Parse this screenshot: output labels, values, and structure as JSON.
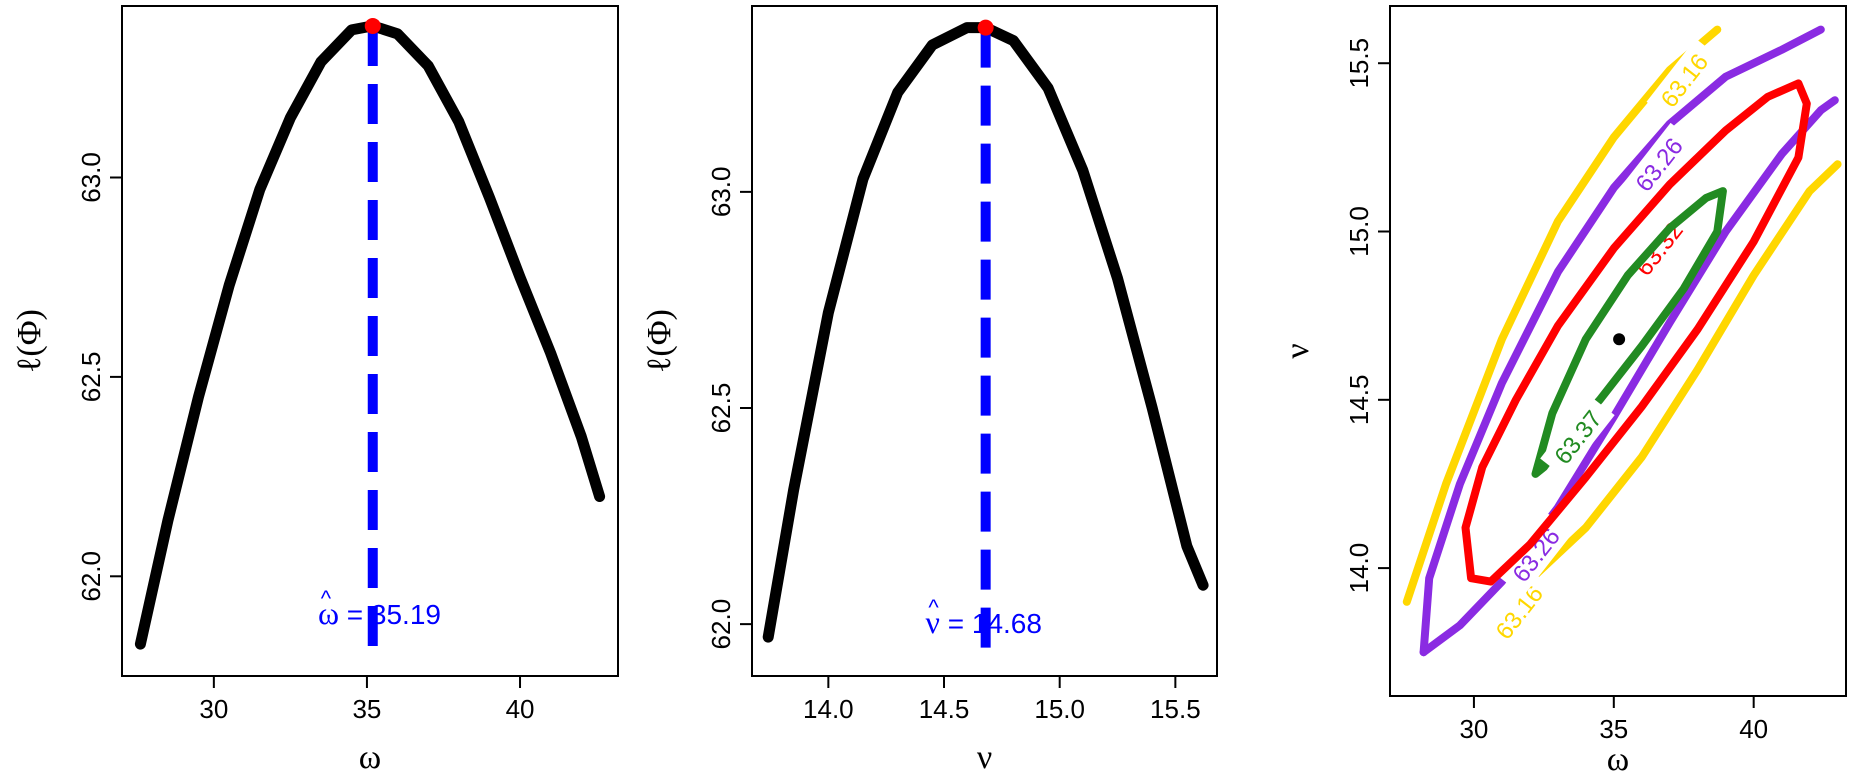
{
  "colors": {
    "curve": "#000000",
    "mle_point": "#ff0000",
    "mle_line": "#0000ff",
    "contour_63_16": "#ffd700",
    "contour_63_26": "#8a2be2",
    "contour_63_32": "#ff0000",
    "contour_63_37": "#228b22"
  },
  "chart_data": [
    {
      "type": "line",
      "xlabel": "ω",
      "ylabel": "ℓ(Φ)",
      "xlim": [
        27,
        43.2
      ],
      "ylim": [
        61.75,
        63.43
      ],
      "xticks": [
        30,
        35,
        40
      ],
      "xtick_labels": [
        "30",
        "35",
        "40"
      ],
      "yticks": [
        62.0,
        62.5,
        63.0
      ],
      "ytick_labels": [
        "62.0",
        "62.5",
        "63.0"
      ],
      "series": [
        {
          "x": [
            27.6,
            28.5,
            29.5,
            30.5,
            31.5,
            32.5,
            33.5,
            34.5,
            35.19,
            36.0,
            37.0,
            38.0,
            39.0,
            40.0,
            41.0,
            42.0,
            42.6
          ],
          "y": [
            61.83,
            62.14,
            62.45,
            62.73,
            62.97,
            63.15,
            63.29,
            63.37,
            63.38,
            63.36,
            63.28,
            63.14,
            62.95,
            62.75,
            62.56,
            62.35,
            62.2
          ]
        }
      ],
      "mle": {
        "x": 35.19,
        "y": 63.38
      },
      "annotation": {
        "hat": "^",
        "symbol": "ω",
        "text": " = 35.19",
        "x": 33.4,
        "y": 61.88
      }
    },
    {
      "type": "line",
      "xlabel": "ν",
      "ylabel": "ℓ(Φ)",
      "xlim": [
        13.67,
        15.68
      ],
      "ylim": [
        61.88,
        63.43
      ],
      "xticks": [
        14.0,
        14.5,
        15.0,
        15.5
      ],
      "xtick_labels": [
        "14.0",
        "14.5",
        "15.0",
        "15.5"
      ],
      "yticks": [
        62.0,
        62.5,
        63.0
      ],
      "ytick_labels": [
        "62.0",
        "62.5",
        "63.0"
      ],
      "series": [
        {
          "x": [
            13.74,
            13.85,
            14.0,
            14.15,
            14.3,
            14.45,
            14.6,
            14.68,
            14.8,
            14.95,
            15.1,
            15.25,
            15.4,
            15.55,
            15.62
          ],
          "y": [
            61.97,
            62.31,
            62.72,
            63.03,
            63.23,
            63.34,
            63.38,
            63.38,
            63.35,
            63.24,
            63.05,
            62.8,
            62.5,
            62.18,
            62.09
          ]
        }
      ],
      "mle": {
        "x": 14.68,
        "y": 63.38
      },
      "annotation": {
        "hat": "^",
        "symbol": "ν",
        "text": " = 14.68",
        "x": 14.42,
        "y": 61.98
      }
    },
    {
      "type": "contour",
      "xlabel": "ω",
      "ylabel": "ν",
      "xlim": [
        27,
        43.3
      ],
      "ylim": [
        13.62,
        15.67
      ],
      "xticks": [
        30,
        35,
        40
      ],
      "xtick_labels": [
        "30",
        "35",
        "40"
      ],
      "yticks": [
        14.0,
        14.5,
        15.0,
        15.5
      ],
      "ytick_labels": [
        "14.0",
        "14.5",
        "15.0",
        "15.5"
      ],
      "center": {
        "x": 35.19,
        "y": 14.68
      },
      "levels": [
        {
          "label": "63.16",
          "paths": [
            {
              "x": [
                27.6,
                29.0,
                31.0,
                33.0,
                35.0,
                37.0,
                38.7
              ],
              "y": [
                13.9,
                14.25,
                14.68,
                15.03,
                15.28,
                15.48,
                15.6
              ]
            },
            {
              "x": [
                32.2,
                34.0,
                36.0,
                38.0,
                40.0,
                42.0,
                43.0
              ],
              "y": [
                13.98,
                14.12,
                14.33,
                14.59,
                14.87,
                15.12,
                15.2
              ]
            }
          ],
          "text_positions": [
            {
              "x": 37.5,
              "y": 15.45
            },
            {
              "x": 31.6,
              "y": 13.87
            }
          ]
        },
        {
          "label": "63.26",
          "paths": [
            {
              "x": [
                28.2,
                28.4,
                29.5,
                31.0,
                33.0,
                35.0,
                37.0,
                39.0,
                41.0,
                42.4
              ],
              "y": [
                13.75,
                13.97,
                14.25,
                14.55,
                14.88,
                15.13,
                15.32,
                15.46,
                15.54,
                15.6
              ]
            },
            {
              "x": [
                28.2,
                29.5,
                31.0,
                33.0,
                35.0,
                37.0,
                39.0,
                41.0,
                42.4,
                42.9
              ],
              "y": [
                13.75,
                13.83,
                13.96,
                14.18,
                14.45,
                14.73,
                15.0,
                15.23,
                15.36,
                15.39
              ]
            }
          ],
          "text_positions": [
            {
              "x": 36.6,
              "y": 15.2
            },
            {
              "x": 32.2,
              "y": 14.04
            }
          ]
        },
        {
          "label": "63.32",
          "paths": [
            {
              "x": [
                29.9,
                29.7,
                30.3,
                31.5,
                33.0,
                35.0,
                37.0,
                39.0,
                40.5,
                41.6,
                41.9,
                41.6,
                40.0,
                38.0,
                36.0,
                34.0,
                32.0,
                30.6,
                29.9
              ],
              "y": [
                13.97,
                14.12,
                14.3,
                14.5,
                14.72,
                14.95,
                15.14,
                15.3,
                15.4,
                15.44,
                15.38,
                15.22,
                14.97,
                14.71,
                14.48,
                14.27,
                14.07,
                13.96,
                13.97
              ]
            }
          ],
          "text_positions": [
            {
              "x": 36.6,
              "y": 14.95
            }
          ]
        },
        {
          "label": "63.37",
          "paths": [
            {
              "x": [
                32.2,
                32.8,
                34.0,
                35.5,
                37.0,
                38.3,
                38.9,
                38.7,
                37.5,
                36.0,
                34.5,
                33.2,
                32.5,
                32.2
              ],
              "y": [
                14.28,
                14.46,
                14.68,
                14.87,
                15.01,
                15.1,
                15.12,
                15.0,
                14.83,
                14.66,
                14.5,
                14.38,
                14.3,
                14.28
              ]
            }
          ],
          "text_positions": [
            {
              "x": 33.7,
              "y": 14.39
            }
          ]
        }
      ]
    }
  ]
}
